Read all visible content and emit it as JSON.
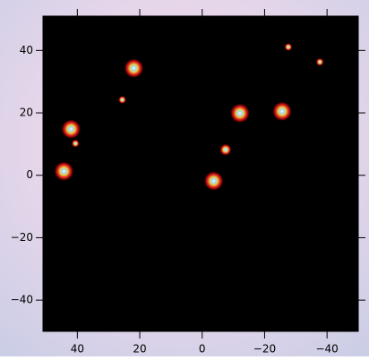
{
  "chart_data": {
    "type": "scatter",
    "x": [
      21.9,
      25.6,
      42.0,
      40.6,
      44.3,
      -3.7,
      -7.5,
      -12.1,
      -25.6,
      -27.6,
      -37.7
    ],
    "y": [
      34.3,
      24.2,
      14.8,
      10.2,
      1.3,
      -1.8,
      8.2,
      19.9,
      20.5,
      41.1,
      36.3
    ],
    "sizes": [
      10,
      4,
      10,
      4,
      10,
      10,
      6,
      10,
      10,
      4,
      4
    ],
    "xlim": [
      51,
      -50
    ],
    "ylim": [
      -50,
      51
    ],
    "xticks": [
      40,
      20,
      0,
      {
        "value": -20,
        "label": "−20"
      },
      {
        "value": -40,
        "label": "−40"
      }
    ],
    "yticks": [
      {
        "value": -40,
        "label": "−40"
      },
      {
        "value": -20,
        "label": "−20"
      },
      0,
      20,
      40
    ],
    "background": "#000000"
  }
}
